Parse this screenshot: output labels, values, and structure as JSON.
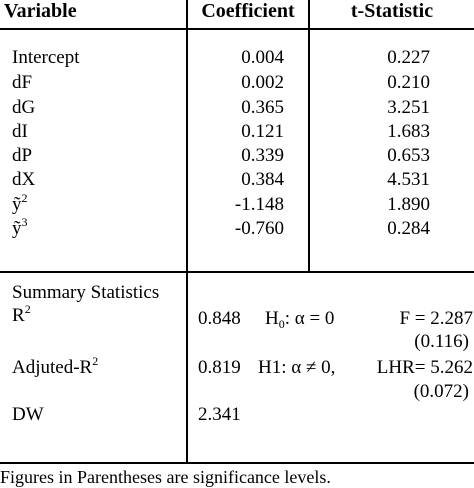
{
  "headers": {
    "variable": "Variable",
    "coefficient": "Coefficient",
    "tstat": "t-Statistic"
  },
  "rows": [
    {
      "var": "Intercept",
      "coef": "0.004",
      "t": "0.227"
    },
    {
      "var": "dF",
      "coef": "0.002",
      "t": "0.210"
    },
    {
      "var": "dG",
      "coef": "0.365",
      "t": "3.251"
    },
    {
      "var": "dI",
      "coef": "0.121",
      "t": "1.683"
    },
    {
      "var": "dP",
      "coef": "0.339",
      "t": "0.653"
    },
    {
      "var": "dX",
      "coef": "0.384",
      "t": "4.531"
    },
    {
      "var": "ỹ",
      "var_sup": "2",
      "coef": "-1.148",
      "t": "1.890"
    },
    {
      "var": "ỹ",
      "var_sup": "3",
      "coef": "-0.760",
      "t": "0.284"
    }
  ],
  "summary": {
    "title": "Summary Statistics",
    "r2": {
      "label": "R",
      "sup": "2",
      "value": "0.848",
      "test": "H",
      "test_sub": "0",
      "test_rest": ": α  =  0",
      "stat": "F = 2.287",
      "sig": "(0.116)"
    },
    "adj_r2": {
      "label": "Adjuted-R",
      "sup": "2",
      "value": "0.819",
      "test": "H1:  α ≠ 0,",
      "stat": "LHR= 5.262",
      "sig": "(0.072)"
    },
    "dw": {
      "label": "DW",
      "value": "2.341"
    }
  },
  "footnote": "Figures in Parentheses are significance levels."
}
